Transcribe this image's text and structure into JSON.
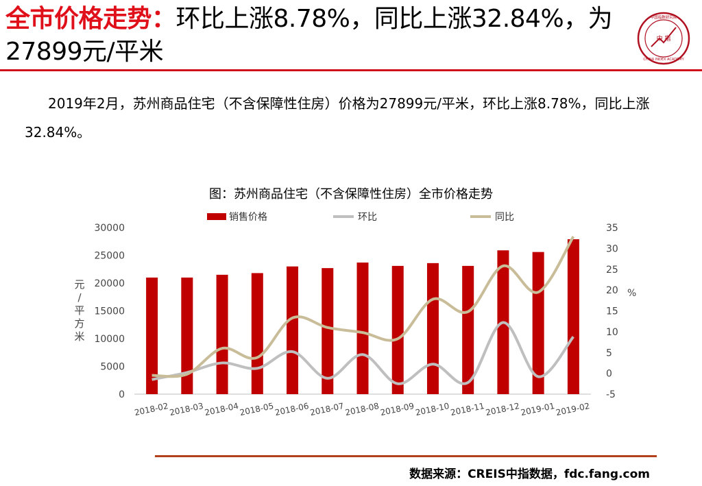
{
  "header": {
    "title_highlight": "全市价格走势：",
    "title_rest": "环比上涨8.78%，同比上涨32.84%，为27899元/平米"
  },
  "logo": {
    "center_text": "中 指",
    "ring_text": "CHINA INDEX ACADEMY",
    "top_text": "中国指数研究院"
  },
  "paragraph": "2019年2月，苏州商品住宅（不含保障性住房）价格为27899元/平米，环比上涨8.78%，同比上涨32.84%。",
  "source": "数据来源：CREIS中指数据，fdc.fang.com",
  "colors": {
    "accent": "#e0101a",
    "bar": "#c00000",
    "mom": "#bfbfbf",
    "yoy": "#c9bd99",
    "rule": "#b2401a"
  },
  "chart_data": {
    "type": "bar",
    "title": "图：苏州商品住宅（不含保障性住房）全市价格走势",
    "categories": [
      "2018-02",
      "2018-03",
      "2018-04",
      "2018-05",
      "2018-06",
      "2018-07",
      "2018-08",
      "2018-09",
      "2018-10",
      "2018-11",
      "2018-12",
      "2019-01",
      "2019-02"
    ],
    "series": [
      {
        "name": "销售价格",
        "type": "bar",
        "axis": "left",
        "values": [
          21000,
          21000,
          21500,
          21800,
          23000,
          22700,
          23700,
          23100,
          23600,
          23100,
          25900,
          25600,
          27899
        ]
      },
      {
        "name": "环比",
        "type": "line",
        "axis": "right",
        "values": [
          -1.5,
          0.2,
          2.5,
          1.2,
          5.2,
          -1.2,
          4.5,
          -2.5,
          2.2,
          -2.2,
          12.2,
          -0.8,
          8.78
        ]
      },
      {
        "name": "同比",
        "type": "line",
        "axis": "right",
        "values": [
          -0.5,
          -0.2,
          6.0,
          3.8,
          13.3,
          11.0,
          9.8,
          8.3,
          17.8,
          14.8,
          25.8,
          19.5,
          32.84
        ]
      }
    ],
    "ylabel": "元/平方米",
    "y2label": "%",
    "ylim": [
      0,
      30000
    ],
    "y2lim": [
      -5,
      35
    ],
    "yticks": [
      "0",
      "5000",
      "10000",
      "15000",
      "20000",
      "25000",
      "30000"
    ],
    "y2ticks": [
      "-5",
      "0",
      "5",
      "10",
      "15",
      "20",
      "25",
      "30",
      "35"
    ],
    "legend_position": "top",
    "grid": false
  }
}
